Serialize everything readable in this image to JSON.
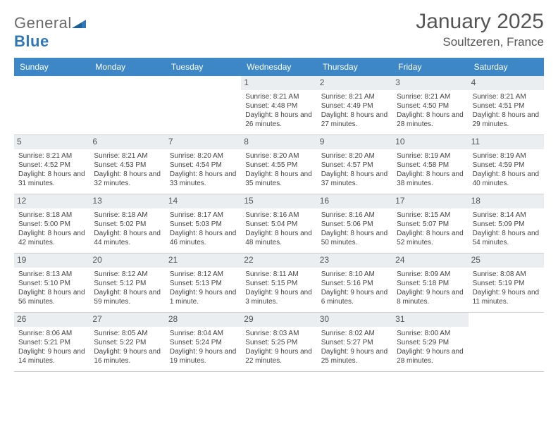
{
  "logo": {
    "word1": "General",
    "word2": "Blue"
  },
  "header": {
    "month_title": "January 2025",
    "location": "Soultzeren, France"
  },
  "colors": {
    "header_bg": "#3d87c7",
    "header_text": "#ffffff",
    "daynum_bg": "#ebeef1",
    "border": "#cccccc",
    "text": "#444444",
    "title": "#555555",
    "logo_gray": "#6a6a6a",
    "logo_blue": "#2f77b8"
  },
  "dayheads": [
    "Sunday",
    "Monday",
    "Tuesday",
    "Wednesday",
    "Thursday",
    "Friday",
    "Saturday"
  ],
  "grid": {
    "lead_blanks": 3,
    "days": [
      {
        "n": "1",
        "sr": "8:21 AM",
        "ss": "4:48 PM",
        "dl": "8 hours and 26 minutes."
      },
      {
        "n": "2",
        "sr": "8:21 AM",
        "ss": "4:49 PM",
        "dl": "8 hours and 27 minutes."
      },
      {
        "n": "3",
        "sr": "8:21 AM",
        "ss": "4:50 PM",
        "dl": "8 hours and 28 minutes."
      },
      {
        "n": "4",
        "sr": "8:21 AM",
        "ss": "4:51 PM",
        "dl": "8 hours and 29 minutes."
      },
      {
        "n": "5",
        "sr": "8:21 AM",
        "ss": "4:52 PM",
        "dl": "8 hours and 31 minutes."
      },
      {
        "n": "6",
        "sr": "8:21 AM",
        "ss": "4:53 PM",
        "dl": "8 hours and 32 minutes."
      },
      {
        "n": "7",
        "sr": "8:20 AM",
        "ss": "4:54 PM",
        "dl": "8 hours and 33 minutes."
      },
      {
        "n": "8",
        "sr": "8:20 AM",
        "ss": "4:55 PM",
        "dl": "8 hours and 35 minutes."
      },
      {
        "n": "9",
        "sr": "8:20 AM",
        "ss": "4:57 PM",
        "dl": "8 hours and 37 minutes."
      },
      {
        "n": "10",
        "sr": "8:19 AM",
        "ss": "4:58 PM",
        "dl": "8 hours and 38 minutes."
      },
      {
        "n": "11",
        "sr": "8:19 AM",
        "ss": "4:59 PM",
        "dl": "8 hours and 40 minutes."
      },
      {
        "n": "12",
        "sr": "8:18 AM",
        "ss": "5:00 PM",
        "dl": "8 hours and 42 minutes."
      },
      {
        "n": "13",
        "sr": "8:18 AM",
        "ss": "5:02 PM",
        "dl": "8 hours and 44 minutes."
      },
      {
        "n": "14",
        "sr": "8:17 AM",
        "ss": "5:03 PM",
        "dl": "8 hours and 46 minutes."
      },
      {
        "n": "15",
        "sr": "8:16 AM",
        "ss": "5:04 PM",
        "dl": "8 hours and 48 minutes."
      },
      {
        "n": "16",
        "sr": "8:16 AM",
        "ss": "5:06 PM",
        "dl": "8 hours and 50 minutes."
      },
      {
        "n": "17",
        "sr": "8:15 AM",
        "ss": "5:07 PM",
        "dl": "8 hours and 52 minutes."
      },
      {
        "n": "18",
        "sr": "8:14 AM",
        "ss": "5:09 PM",
        "dl": "8 hours and 54 minutes."
      },
      {
        "n": "19",
        "sr": "8:13 AM",
        "ss": "5:10 PM",
        "dl": "8 hours and 56 minutes."
      },
      {
        "n": "20",
        "sr": "8:12 AM",
        "ss": "5:12 PM",
        "dl": "8 hours and 59 minutes."
      },
      {
        "n": "21",
        "sr": "8:12 AM",
        "ss": "5:13 PM",
        "dl": "9 hours and 1 minute."
      },
      {
        "n": "22",
        "sr": "8:11 AM",
        "ss": "5:15 PM",
        "dl": "9 hours and 3 minutes."
      },
      {
        "n": "23",
        "sr": "8:10 AM",
        "ss": "5:16 PM",
        "dl": "9 hours and 6 minutes."
      },
      {
        "n": "24",
        "sr": "8:09 AM",
        "ss": "5:18 PM",
        "dl": "9 hours and 8 minutes."
      },
      {
        "n": "25",
        "sr": "8:08 AM",
        "ss": "5:19 PM",
        "dl": "9 hours and 11 minutes."
      },
      {
        "n": "26",
        "sr": "8:06 AM",
        "ss": "5:21 PM",
        "dl": "9 hours and 14 minutes."
      },
      {
        "n": "27",
        "sr": "8:05 AM",
        "ss": "5:22 PM",
        "dl": "9 hours and 16 minutes."
      },
      {
        "n": "28",
        "sr": "8:04 AM",
        "ss": "5:24 PM",
        "dl": "9 hours and 19 minutes."
      },
      {
        "n": "29",
        "sr": "8:03 AM",
        "ss": "5:25 PM",
        "dl": "9 hours and 22 minutes."
      },
      {
        "n": "30",
        "sr": "8:02 AM",
        "ss": "5:27 PM",
        "dl": "9 hours and 25 minutes."
      },
      {
        "n": "31",
        "sr": "8:00 AM",
        "ss": "5:29 PM",
        "dl": "9 hours and 28 minutes."
      }
    ],
    "trail_blanks": 1
  },
  "labels": {
    "sunrise": "Sunrise: ",
    "sunset": "Sunset: ",
    "daylight": "Daylight: "
  }
}
